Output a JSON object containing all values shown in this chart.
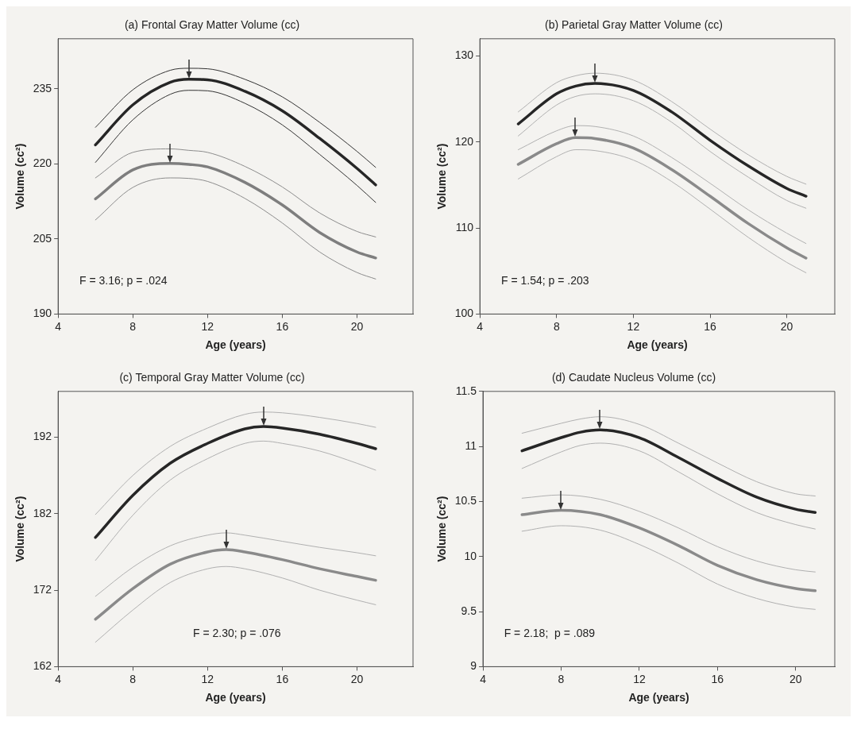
{
  "chart_data": [
    {
      "type": "line",
      "title": "(a) Frontal Gray Matter Volume (cc)",
      "xlabel": "Age (years)",
      "ylabel": "Volume (cc²)",
      "xlim": [
        4,
        23
      ],
      "xticks": [
        4,
        8,
        12,
        16,
        20
      ],
      "ylim": [
        190,
        245
      ],
      "yticks": [
        190,
        205,
        220,
        235
      ],
      "annotations": [
        "F = 3.16; p = .024"
      ],
      "series": [
        {
          "color": "#262626",
          "x": [
            6,
            8,
            10,
            11,
            12,
            14,
            16,
            18,
            20,
            21
          ],
          "values": [
            223.8,
            231.8,
            236.3,
            236.9,
            236.8,
            234.5,
            230.6,
            225.1,
            219.1,
            215.8
          ]
        },
        {
          "color": "#7e7e7e",
          "x": [
            6,
            8,
            10,
            11,
            12,
            14,
            16,
            18,
            20,
            21
          ],
          "values": [
            213.0,
            218.8,
            220.1,
            219.9,
            219.4,
            216.3,
            211.8,
            206.3,
            202.4,
            201.2
          ]
        },
        {
          "color": "#333333",
          "x": [
            6,
            8,
            10,
            11,
            12,
            14,
            16,
            18,
            20,
            21
          ],
          "values": [
            227.3,
            234.8,
            238.7,
            239.1,
            239.0,
            236.9,
            233.4,
            228.3,
            222.5,
            219.3
          ]
        },
        {
          "color": "#333333",
          "x": [
            6,
            8,
            10,
            11,
            12,
            14,
            16,
            18,
            20,
            21
          ],
          "values": [
            220.3,
            228.8,
            233.9,
            234.7,
            234.6,
            232.1,
            227.8,
            221.9,
            215.7,
            212.3
          ]
        },
        {
          "color": "#8c8c8c",
          "x": [
            6,
            8,
            10,
            11,
            12,
            14,
            16,
            18,
            20,
            21
          ],
          "values": [
            217.2,
            222.3,
            223.0,
            222.7,
            222.3,
            219.5,
            215.4,
            210.2,
            206.5,
            205.4
          ]
        },
        {
          "color": "#8c8c8c",
          "x": [
            6,
            8,
            10,
            11,
            12,
            14,
            16,
            18,
            20,
            21
          ],
          "values": [
            208.8,
            215.3,
            217.2,
            217.1,
            216.5,
            213.1,
            208.2,
            202.4,
            198.3,
            197.0
          ]
        }
      ]
    },
    {
      "type": "line",
      "title": "(b) Parietal Gray Matter Volume (cc)",
      "xlabel": "Age (years)",
      "ylabel": "Volume (cc²)",
      "xlim": [
        4,
        22.5
      ],
      "xticks": [
        4,
        8,
        12,
        16,
        20
      ],
      "ylim": [
        100,
        132
      ],
      "yticks": [
        100,
        110,
        120,
        130
      ],
      "annotations": [
        "F = 1.54; p = .203"
      ],
      "series": [
        {
          "color": "#262626",
          "x": [
            6,
            8,
            9,
            10,
            12,
            14,
            16,
            18,
            20,
            21
          ],
          "values": [
            122.1,
            125.6,
            126.5,
            126.8,
            126.0,
            123.5,
            120.2,
            117.2,
            114.6,
            113.7
          ]
        },
        {
          "color": "#8a8a8a",
          "x": [
            6,
            8,
            9,
            10,
            12,
            14,
            16,
            18,
            20,
            21
          ],
          "values": [
            117.4,
            119.8,
            120.5,
            120.4,
            119.3,
            116.8,
            113.7,
            110.5,
            107.7,
            106.5
          ]
        },
        {
          "color": "#b0b0b0",
          "x": [
            6,
            8,
            9,
            10,
            12,
            14,
            16,
            18,
            20,
            21
          ],
          "values": [
            123.5,
            126.9,
            127.7,
            128.0,
            127.2,
            124.7,
            121.5,
            118.5,
            116.0,
            115.1
          ]
        },
        {
          "color": "#b0b0b0",
          "x": [
            6,
            8,
            9,
            10,
            12,
            14,
            16,
            18,
            20,
            21
          ],
          "values": [
            120.7,
            124.3,
            125.3,
            125.6,
            124.8,
            122.3,
            118.9,
            115.9,
            113.2,
            112.3
          ]
        },
        {
          "color": "#b0b0b0",
          "x": [
            6,
            8,
            9,
            10,
            12,
            14,
            16,
            18,
            20,
            21
          ],
          "values": [
            119.1,
            121.3,
            121.9,
            121.8,
            120.7,
            118.2,
            115.2,
            112.1,
            109.4,
            108.2
          ]
        },
        {
          "color": "#b0b0b0",
          "x": [
            6,
            8,
            9,
            10,
            12,
            14,
            16,
            18,
            20,
            21
          ],
          "values": [
            115.7,
            118.3,
            119.1,
            119.0,
            117.9,
            115.4,
            112.2,
            108.9,
            106.0,
            104.8
          ]
        }
      ]
    },
    {
      "type": "line",
      "title": "(c) Temporal Gray Matter Volume (cc)",
      "xlabel": "Age (years)",
      "ylabel": "Volume (cc²)",
      "xlim": [
        4,
        23
      ],
      "xticks": [
        4,
        8,
        12,
        16,
        20
      ],
      "ylim": [
        162,
        198
      ],
      "yticks": [
        162,
        172,
        182,
        192
      ],
      "annotations": [
        "F = 2.30; p = .076"
      ],
      "series": [
        {
          "color": "#262626",
          "x": [
            6,
            8,
            10,
            12,
            14,
            15,
            16,
            18,
            20,
            21
          ],
          "values": [
            178.9,
            184.4,
            188.6,
            191.2,
            193.1,
            193.4,
            193.2,
            192.4,
            191.2,
            190.5
          ]
        },
        {
          "color": "#8a8a8a",
          "x": [
            6,
            8,
            10,
            12,
            13,
            14,
            16,
            18,
            20,
            21
          ],
          "values": [
            168.2,
            172.2,
            175.4,
            177.0,
            177.3,
            177.0,
            176.0,
            174.8,
            173.8,
            173.3
          ]
        },
        {
          "color": "#b0b0b0",
          "x": [
            6,
            8,
            10,
            12,
            14,
            15,
            16,
            18,
            20,
            21
          ],
          "values": [
            181.9,
            187.0,
            190.8,
            193.2,
            195.0,
            195.3,
            195.2,
            194.6,
            193.8,
            193.3
          ]
        },
        {
          "color": "#b0b0b0",
          "x": [
            6,
            8,
            10,
            12,
            14,
            15,
            16,
            18,
            20,
            21
          ],
          "values": [
            175.9,
            181.8,
            186.4,
            189.2,
            191.2,
            191.5,
            191.2,
            190.2,
            188.6,
            187.7
          ]
        },
        {
          "color": "#b0b0b0",
          "x": [
            6,
            8,
            10,
            12,
            13,
            14,
            16,
            18,
            20,
            21
          ],
          "values": [
            171.2,
            175.0,
            177.8,
            179.2,
            179.5,
            179.2,
            178.4,
            177.6,
            176.9,
            176.5
          ]
        },
        {
          "color": "#b0b0b0",
          "x": [
            6,
            8,
            10,
            12,
            13,
            14,
            16,
            18,
            20,
            21
          ],
          "values": [
            165.2,
            169.4,
            173.0,
            174.8,
            175.1,
            174.8,
            173.6,
            172.0,
            170.7,
            170.1
          ]
        }
      ]
    },
    {
      "type": "line",
      "title": "(d) Caudate Nucleus Volume (cc)",
      "xlabel": "Age (years)",
      "ylabel": "Volume (cc²)",
      "xlim": [
        4,
        22
      ],
      "xticks": [
        4,
        8,
        12,
        16,
        20
      ],
      "ylim": [
        9,
        11.5
      ],
      "yticks": [
        9,
        9.5,
        10,
        10.5,
        11,
        11.5
      ],
      "annotations": [
        "F = 2.18;  p = .089"
      ],
      "series": [
        {
          "color": "#262626",
          "x": [
            6,
            8,
            9,
            10,
            12,
            14,
            16,
            18,
            20,
            21
          ],
          "values": [
            10.96,
            11.08,
            11.13,
            11.15,
            11.08,
            10.9,
            10.71,
            10.54,
            10.43,
            10.4
          ]
        },
        {
          "color": "#8a8a8a",
          "x": [
            6,
            8,
            10,
            12,
            14,
            16,
            18,
            20,
            21
          ],
          "values": [
            10.38,
            10.42,
            10.38,
            10.26,
            10.1,
            9.92,
            9.79,
            9.71,
            9.69
          ]
        },
        {
          "color": "#b0b0b0",
          "x": [
            6,
            8,
            9,
            10,
            12,
            14,
            16,
            18,
            20,
            21
          ],
          "values": [
            11.12,
            11.21,
            11.25,
            11.27,
            11.2,
            11.03,
            10.85,
            10.68,
            10.57,
            10.55
          ]
        },
        {
          "color": "#b0b0b0",
          "x": [
            6,
            8,
            9,
            10,
            12,
            14,
            16,
            18,
            20,
            21
          ],
          "values": [
            10.8,
            10.95,
            11.01,
            11.03,
            10.96,
            10.77,
            10.57,
            10.4,
            10.29,
            10.25
          ]
        },
        {
          "color": "#b0b0b0",
          "x": [
            6,
            8,
            10,
            12,
            14,
            16,
            18,
            20,
            21
          ],
          "values": [
            10.53,
            10.56,
            10.52,
            10.41,
            10.26,
            10.09,
            9.96,
            9.88,
            9.86
          ]
        },
        {
          "color": "#b0b0b0",
          "x": [
            6,
            8,
            10,
            12,
            14,
            16,
            18,
            20,
            21
          ],
          "values": [
            10.23,
            10.28,
            10.24,
            10.11,
            9.94,
            9.75,
            9.62,
            9.54,
            9.52
          ]
        }
      ]
    }
  ]
}
